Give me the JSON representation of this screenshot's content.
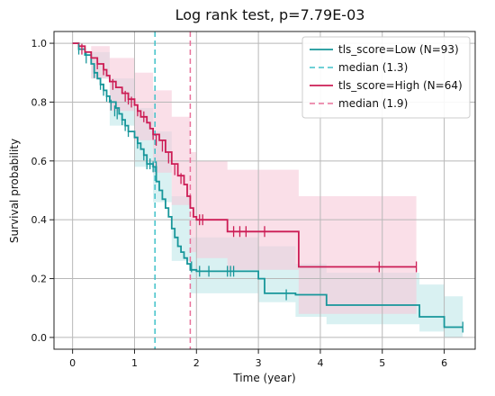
{
  "chart_data": {
    "type": "line",
    "title": "Log rank test, p=7.79E-03",
    "xlabel": "Time (year)",
    "ylabel": "Survival probability",
    "xlim": [
      -0.3,
      6.5
    ],
    "ylim": [
      -0.04,
      1.04
    ],
    "xticks": [
      0,
      1,
      2,
      3,
      4,
      5,
      6
    ],
    "yticks": [
      0.0,
      0.2,
      0.4,
      0.6,
      0.8,
      1.0
    ],
    "grid": true,
    "legend_position": "top-right",
    "series": [
      {
        "name": "tls_score=Low (N=93)",
        "color": "#17969a",
        "band_color": "#bfe8ea",
        "steps": [
          [
            0,
            1.0
          ],
          [
            0.1,
            0.98
          ],
          [
            0.2,
            0.96
          ],
          [
            0.3,
            0.93
          ],
          [
            0.35,
            0.9
          ],
          [
            0.4,
            0.88
          ],
          [
            0.45,
            0.86
          ],
          [
            0.5,
            0.84
          ],
          [
            0.55,
            0.82
          ],
          [
            0.6,
            0.8
          ],
          [
            0.7,
            0.78
          ],
          [
            0.75,
            0.76
          ],
          [
            0.8,
            0.74
          ],
          [
            0.85,
            0.72
          ],
          [
            0.9,
            0.7
          ],
          [
            1.0,
            0.68
          ],
          [
            1.05,
            0.66
          ],
          [
            1.1,
            0.64
          ],
          [
            1.15,
            0.62
          ],
          [
            1.2,
            0.59
          ],
          [
            1.3,
            0.58
          ],
          [
            1.35,
            0.53
          ],
          [
            1.4,
            0.5
          ],
          [
            1.45,
            0.47
          ],
          [
            1.5,
            0.44
          ],
          [
            1.55,
            0.41
          ],
          [
            1.6,
            0.37
          ],
          [
            1.65,
            0.34
          ],
          [
            1.7,
            0.31
          ],
          [
            1.75,
            0.29
          ],
          [
            1.8,
            0.27
          ],
          [
            1.85,
            0.25
          ],
          [
            1.9,
            0.23
          ],
          [
            2.0,
            0.225
          ],
          [
            3.0,
            0.2
          ],
          [
            3.1,
            0.15
          ],
          [
            3.6,
            0.145
          ],
          [
            4.1,
            0.11
          ],
          [
            5.6,
            0.07
          ],
          [
            6.0,
            0.035
          ],
          [
            6.3,
            0.035
          ]
        ],
        "upper": [
          [
            0,
            1.0
          ],
          [
            0.3,
            0.97
          ],
          [
            0.6,
            0.88
          ],
          [
            1.0,
            0.78
          ],
          [
            1.3,
            0.7
          ],
          [
            1.6,
            0.48
          ],
          [
            1.9,
            0.34
          ],
          [
            2.0,
            0.34
          ],
          [
            3.0,
            0.31
          ],
          [
            3.6,
            0.25
          ],
          [
            4.1,
            0.22
          ],
          [
            5.6,
            0.18
          ],
          [
            6.0,
            0.14
          ],
          [
            6.3,
            0.14
          ]
        ],
        "lower": [
          [
            0,
            1.0
          ],
          [
            0.3,
            0.88
          ],
          [
            0.6,
            0.72
          ],
          [
            1.0,
            0.58
          ],
          [
            1.3,
            0.46
          ],
          [
            1.6,
            0.26
          ],
          [
            1.9,
            0.15
          ],
          [
            2.0,
            0.15
          ],
          [
            3.0,
            0.12
          ],
          [
            3.6,
            0.07
          ],
          [
            4.1,
            0.045
          ],
          [
            5.6,
            0.02
          ],
          [
            6.0,
            0.0
          ],
          [
            6.3,
            0.0
          ]
        ],
        "censors": [
          [
            0.1,
            0.98
          ],
          [
            0.22,
            0.95
          ],
          [
            0.35,
            0.9
          ],
          [
            0.45,
            0.86
          ],
          [
            0.5,
            0.84
          ],
          [
            0.55,
            0.82
          ],
          [
            0.62,
            0.79
          ],
          [
            0.68,
            0.77
          ],
          [
            0.72,
            0.76
          ],
          [
            0.8,
            0.74
          ],
          [
            0.85,
            0.72
          ],
          [
            0.9,
            0.7
          ],
          [
            1.05,
            0.66
          ],
          [
            1.15,
            0.62
          ],
          [
            1.2,
            0.59
          ],
          [
            1.25,
            0.59
          ],
          [
            1.3,
            0.58
          ],
          [
            1.35,
            0.58
          ],
          [
            1.92,
            0.24
          ],
          [
            2.05,
            0.225
          ],
          [
            2.2,
            0.225
          ],
          [
            2.5,
            0.225
          ],
          [
            2.55,
            0.225
          ],
          [
            2.6,
            0.225
          ],
          [
            3.45,
            0.145
          ],
          [
            6.3,
            0.035
          ]
        ]
      },
      {
        "name": "tls_score=High (N=64)",
        "color": "#cc1d55",
        "band_color": "#f6c9d9",
        "steps": [
          [
            0,
            1.0
          ],
          [
            0.1,
            0.99
          ],
          [
            0.2,
            0.97
          ],
          [
            0.3,
            0.95
          ],
          [
            0.4,
            0.93
          ],
          [
            0.5,
            0.91
          ],
          [
            0.55,
            0.89
          ],
          [
            0.6,
            0.87
          ],
          [
            0.7,
            0.85
          ],
          [
            0.8,
            0.83
          ],
          [
            0.9,
            0.81
          ],
          [
            1.0,
            0.79
          ],
          [
            1.05,
            0.77
          ],
          [
            1.1,
            0.75
          ],
          [
            1.2,
            0.73
          ],
          [
            1.25,
            0.71
          ],
          [
            1.3,
            0.69
          ],
          [
            1.4,
            0.67
          ],
          [
            1.5,
            0.63
          ],
          [
            1.6,
            0.59
          ],
          [
            1.7,
            0.55
          ],
          [
            1.8,
            0.52
          ],
          [
            1.85,
            0.48
          ],
          [
            1.9,
            0.44
          ],
          [
            1.95,
            0.41
          ],
          [
            2.0,
            0.4
          ],
          [
            2.5,
            0.36
          ],
          [
            3.05,
            0.36
          ],
          [
            3.65,
            0.24
          ],
          [
            5.55,
            0.24
          ]
        ],
        "upper": [
          [
            0,
            1.0
          ],
          [
            0.3,
            0.99
          ],
          [
            0.6,
            0.95
          ],
          [
            1.0,
            0.9
          ],
          [
            1.3,
            0.84
          ],
          [
            1.6,
            0.75
          ],
          [
            1.9,
            0.63
          ],
          [
            2.0,
            0.6
          ],
          [
            2.5,
            0.57
          ],
          [
            3.05,
            0.57
          ],
          [
            3.65,
            0.48
          ],
          [
            5.55,
            0.48
          ]
        ],
        "lower": [
          [
            0,
            1.0
          ],
          [
            0.3,
            0.88
          ],
          [
            0.6,
            0.77
          ],
          [
            1.0,
            0.67
          ],
          [
            1.3,
            0.56
          ],
          [
            1.6,
            0.45
          ],
          [
            1.9,
            0.29
          ],
          [
            2.0,
            0.27
          ],
          [
            2.5,
            0.23
          ],
          [
            3.05,
            0.23
          ],
          [
            3.65,
            0.08
          ],
          [
            5.55,
            0.08
          ]
        ],
        "censors": [
          [
            0.15,
            0.98
          ],
          [
            0.4,
            0.93
          ],
          [
            0.5,
            0.91
          ],
          [
            0.65,
            0.86
          ],
          [
            0.85,
            0.82
          ],
          [
            0.9,
            0.81
          ],
          [
            0.95,
            0.8
          ],
          [
            1.05,
            0.77
          ],
          [
            1.15,
            0.75
          ],
          [
            1.3,
            0.69
          ],
          [
            1.35,
            0.67
          ],
          [
            1.45,
            0.65
          ],
          [
            1.55,
            0.61
          ],
          [
            1.65,
            0.57
          ],
          [
            1.75,
            0.54
          ],
          [
            2.05,
            0.4
          ],
          [
            2.1,
            0.4
          ],
          [
            2.6,
            0.36
          ],
          [
            2.7,
            0.36
          ],
          [
            2.8,
            0.36
          ],
          [
            3.1,
            0.36
          ],
          [
            4.95,
            0.24
          ],
          [
            5.55,
            0.24
          ]
        ]
      }
    ],
    "medians": [
      {
        "name": "median (1.3)",
        "x": 1.33,
        "color": "#3fc1c9"
      },
      {
        "name": "median (1.9)",
        "x": 1.9,
        "color": "#e8709a"
      }
    ]
  }
}
